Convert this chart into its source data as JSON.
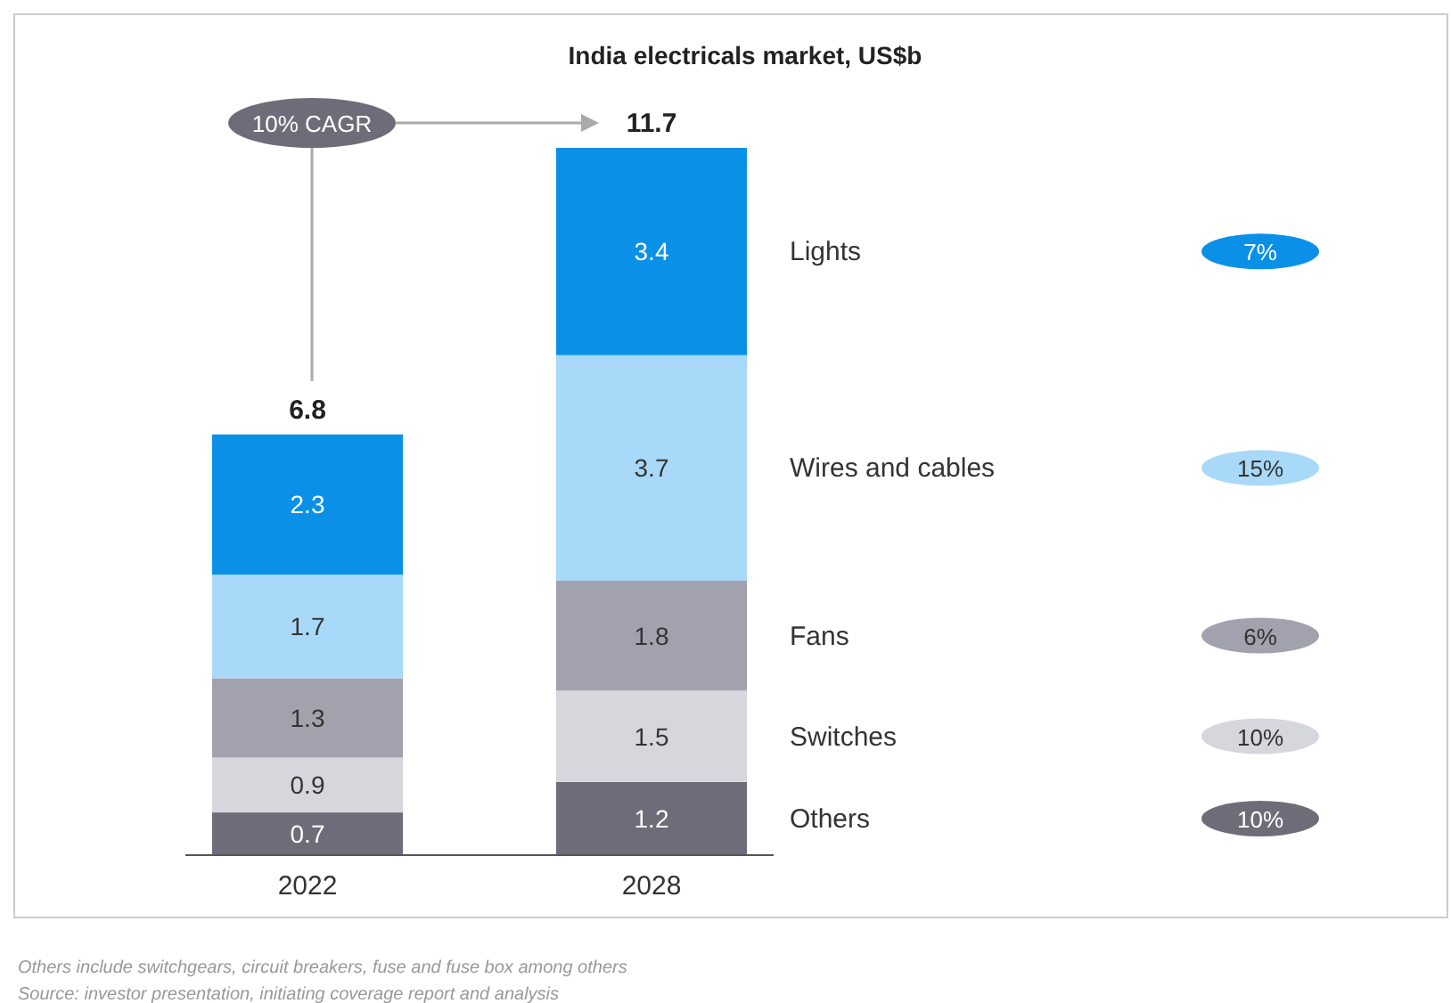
{
  "chart_data": {
    "type": "bar",
    "title": "India electricals market, US$b",
    "categories": [
      "2022",
      "2028"
    ],
    "stacked": true,
    "data_labels": true,
    "totals": [
      "6.8",
      "11.7"
    ],
    "series": [
      {
        "name": "Others",
        "color": "#6e6c79",
        "values": [
          0.7,
          1.2
        ]
      },
      {
        "name": "Switches",
        "color": "#d6d6dd",
        "values": [
          0.9,
          1.5
        ]
      },
      {
        "name": "Fans",
        "color": "#a2a1ae",
        "values": [
          1.3,
          1.8
        ]
      },
      {
        "name": "Wires and cables",
        "color": "#a9d9f9",
        "values": [
          1.7,
          3.7
        ]
      },
      {
        "name": "Lights",
        "color": "#0b90e8",
        "values": [
          2.3,
          3.4
        ]
      }
    ],
    "annotations": [
      "10% CAGR",
      "10%",
      "10%",
      "6%",
      "15%",
      "7%",
      "Others include switchgears, circuit breakers, fuse and fuse box among others",
      "Source: investor presentation, initiating coverage report and analysis"
    ]
  }
}
